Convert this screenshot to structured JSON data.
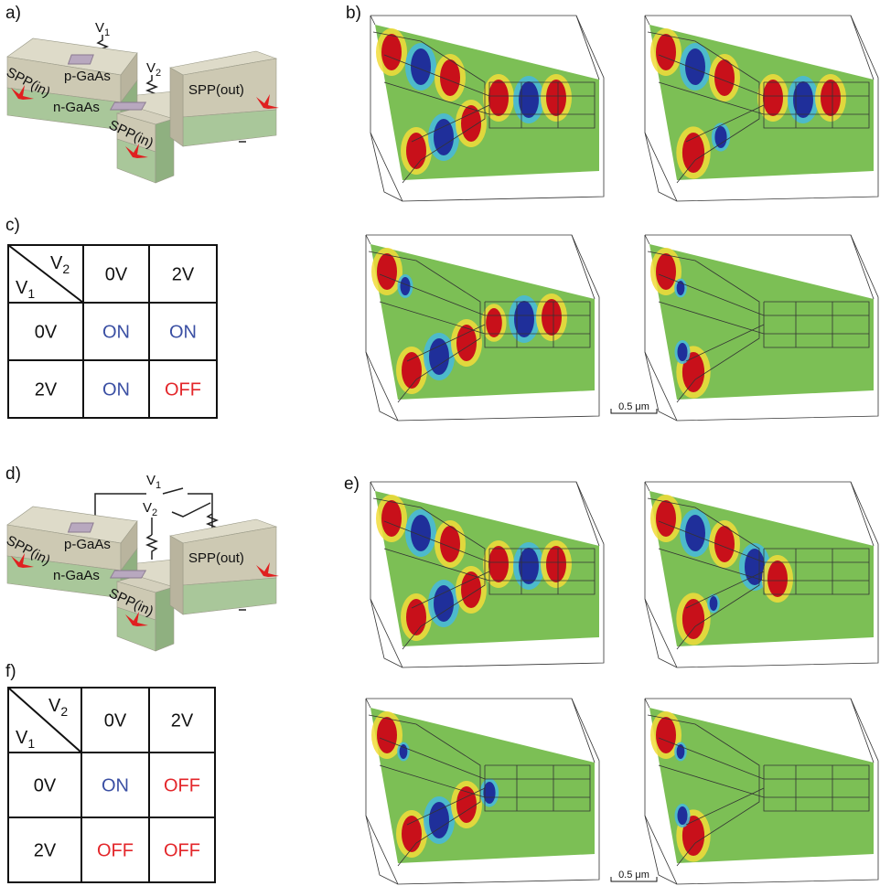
{
  "figure_a": {
    "label": "a)",
    "v1": {
      "base": "V",
      "sub": "1"
    },
    "v2": {
      "base": "V",
      "sub": "2"
    },
    "p_layer": "p-GaAs",
    "n_layer": "n-GaAs",
    "spp_in_1": "SPP(in)",
    "spp_in_2": "SPP(in)",
    "spp_out": "SPP(out)"
  },
  "sim_b": {
    "label": "b)",
    "scale_bar": "0.5 μm"
  },
  "table_c": {
    "label": "c)",
    "col_var": {
      "base": "V",
      "sub": "2"
    },
    "row_var": {
      "base": "V",
      "sub": "1"
    },
    "columns": [
      "0V",
      "2V"
    ],
    "rows": [
      {
        "label": "0V",
        "cells": [
          {
            "text": "ON",
            "color": "#3a4fa3"
          },
          {
            "text": "ON",
            "color": "#3a4fa3"
          }
        ]
      },
      {
        "label": "2V",
        "cells": [
          {
            "text": "ON",
            "color": "#3a4fa3"
          },
          {
            "text": "OFF",
            "color": "#e3262a"
          }
        ]
      }
    ]
  },
  "figure_d": {
    "label": "d)",
    "v1": {
      "base": "V",
      "sub": "1"
    },
    "v2": {
      "base": "V",
      "sub": "2"
    },
    "p_layer": "p-GaAs",
    "n_layer": "n-GaAs",
    "spp_in_1": "SPP(in)",
    "spp_in_2": "SPP(in)",
    "spp_out": "SPP(out)"
  },
  "sim_e": {
    "label": "e)",
    "scale_bar": "0.5 μm"
  },
  "table_f": {
    "label": "f)",
    "col_var": {
      "base": "V",
      "sub": "2"
    },
    "row_var": {
      "base": "V",
      "sub": "1"
    },
    "columns": [
      "0V",
      "2V"
    ],
    "rows": [
      {
        "label": "0V",
        "cells": [
          {
            "text": "ON",
            "color": "#3a4fa3"
          },
          {
            "text": "OFF",
            "color": "#e3262a"
          }
        ]
      },
      {
        "label": "2V",
        "cells": [
          {
            "text": "OFF",
            "color": "#e3262a"
          },
          {
            "text": "OFF",
            "color": "#e3262a"
          }
        ]
      }
    ]
  }
}
